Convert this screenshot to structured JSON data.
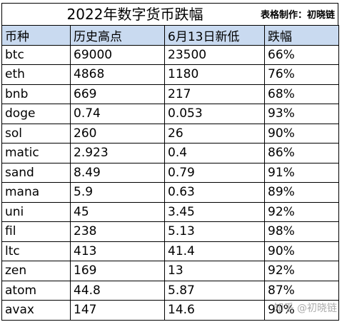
{
  "title": "2022年数字货币跌幅",
  "credit": "表格制作：初晓链",
  "headers": [
    "币种",
    "历史高点",
    "6月13日新低",
    "跌幅"
  ],
  "rows": [
    [
      "btc",
      "69000",
      "23500",
      "66%"
    ],
    [
      "eth",
      "4868",
      "1180",
      "76%"
    ],
    [
      "bnb",
      "669",
      "217",
      "68%"
    ],
    [
      "doge",
      "0.74",
      "0.053",
      "93%"
    ],
    [
      "sol",
      "260",
      "26",
      "90%"
    ],
    [
      "matic",
      "2.923",
      "0.4",
      "86%"
    ],
    [
      "sand",
      "8.49",
      "0.79",
      "91%"
    ],
    [
      "mana",
      "5.9",
      "0.63",
      "89%"
    ],
    [
      "uni",
      "45",
      "3.45",
      "92%"
    ],
    [
      "fil",
      "238",
      "5.13",
      "98%"
    ],
    [
      "ltc",
      "413",
      "41.4",
      "90%"
    ],
    [
      "zen",
      "169",
      "13",
      "92%"
    ],
    [
      "atom",
      "44.8",
      "5.87",
      "87%"
    ],
    [
      "avax",
      "147",
      "14.6",
      "90%"
    ]
  ],
  "watermark": "知乎 @初晓链",
  "colors": {
    "header_bg": "#c9daf0",
    "border": "#000000"
  }
}
